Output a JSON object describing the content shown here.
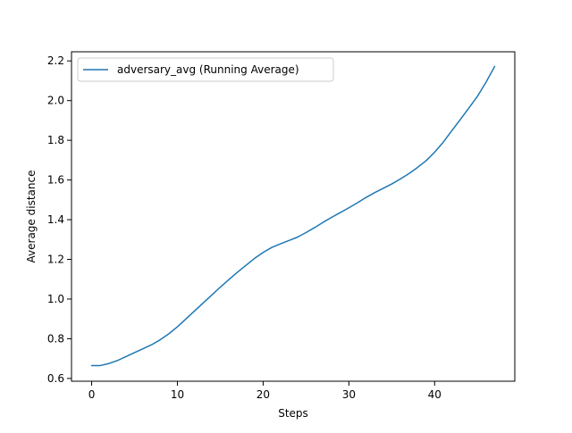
{
  "chart_data": {
    "type": "line",
    "title": "",
    "xlabel": "Steps",
    "ylabel": "Average distance",
    "xlim": [
      -2.35,
      49.35
    ],
    "ylim": [
      0.586,
      2.246
    ],
    "xticks": [
      0,
      10,
      20,
      30,
      40
    ],
    "yticks": [
      0.6,
      0.8,
      1.0,
      1.2,
      1.4,
      1.6,
      1.8,
      2.0,
      2.2
    ],
    "grid": false,
    "legend_position": "upper-left",
    "series": [
      {
        "name": "adversary_avg (Running Average)",
        "color": "#1f77b4",
        "x": [
          0,
          1,
          2,
          3,
          4,
          5,
          6,
          7,
          8,
          9,
          10,
          11,
          12,
          13,
          14,
          15,
          16,
          17,
          18,
          19,
          20,
          21,
          22,
          23,
          24,
          25,
          26,
          27,
          28,
          29,
          30,
          31,
          32,
          33,
          34,
          35,
          36,
          37,
          38,
          39,
          40,
          41,
          42,
          43,
          44,
          45,
          46,
          47
        ],
        "y": [
          0.665,
          0.665,
          0.675,
          0.69,
          0.71,
          0.73,
          0.75,
          0.77,
          0.795,
          0.825,
          0.86,
          0.9,
          0.94,
          0.98,
          1.02,
          1.06,
          1.098,
          1.135,
          1.17,
          1.205,
          1.235,
          1.26,
          1.278,
          1.295,
          1.312,
          1.335,
          1.36,
          1.387,
          1.412,
          1.436,
          1.46,
          1.485,
          1.512,
          1.536,
          1.558,
          1.58,
          1.605,
          1.632,
          1.663,
          1.697,
          1.74,
          1.79,
          1.848,
          1.905,
          1.963,
          2.022,
          2.093,
          2.172
        ]
      }
    ]
  }
}
